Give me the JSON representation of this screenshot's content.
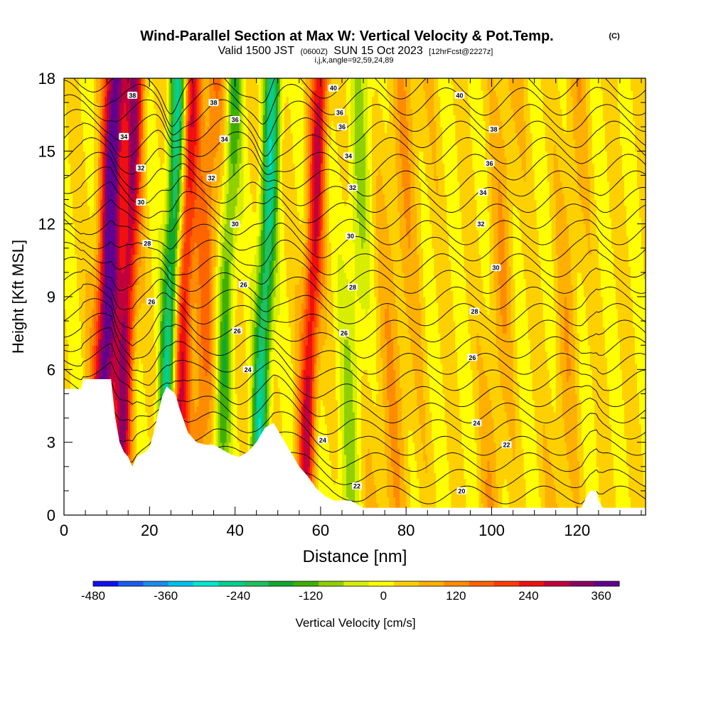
{
  "chart_data": {
    "type": "heatmap",
    "title": "Wind-Parallel Section at Max W: Vertical Velocity & Pot.Temp.",
    "title_mark": "(C)",
    "subtitle": {
      "prefix": "Valid 1500 JST",
      "zulu": "(0600Z)",
      "date": "SUN 15 Oct 2023",
      "forecast": "[12hrFcst@2227z]"
    },
    "subtitle2": "i,j,k,angle=92,59,24,89",
    "xlabel": "Distance [nm]",
    "ylabel": "Height [Kft MSL]",
    "xlim": [
      0,
      136
    ],
    "ylim": [
      0,
      18
    ],
    "xticks": [
      "0",
      "20",
      "40",
      "60",
      "80",
      "100",
      "120"
    ],
    "yticks": [
      "0",
      "3",
      "6",
      "9",
      "12",
      "15",
      "18"
    ],
    "colorbar": {
      "label": "Vertical Velocity [cm/s]",
      "range": [
        -480,
        390
      ],
      "tick_labels": [
        "-480",
        "-360",
        "-240",
        "-120",
        "0",
        "120",
        "240",
        "360"
      ],
      "colors": [
        "#1010f0",
        "#1a5cf0",
        "#1a8cf0",
        "#00c0f0",
        "#00e6d0",
        "#00d090",
        "#20c060",
        "#10a830",
        "#40b000",
        "#90d000",
        "#d8ee00",
        "#ffff00",
        "#ffd000",
        "#ffb000",
        "#ff8c00",
        "#ff6400",
        "#ff3c00",
        "#f01010",
        "#c0003c",
        "#8c0064",
        "#600090"
      ]
    },
    "background_w": 20,
    "w_features": [
      {
        "x": 10,
        "w": 320,
        "width": 2.5
      },
      {
        "x": 12,
        "w": 80,
        "width": 3
      },
      {
        "x": 15,
        "w": 250,
        "width": 2
      },
      {
        "x": 25,
        "w": -260,
        "width": 2
      },
      {
        "x": 28,
        "w": 230,
        "width": 2
      },
      {
        "x": 33,
        "w": 120,
        "width": 3
      },
      {
        "x": 38,
        "w": -150,
        "width": 2
      },
      {
        "x": 47,
        "w": -260,
        "width": 2
      },
      {
        "x": 58,
        "w": 250,
        "width": 2
      },
      {
        "x": 68,
        "w": -80,
        "width": 3
      },
      {
        "x": 78,
        "w": 60,
        "width": 5
      },
      {
        "x": 102,
        "w": 60,
        "width": 3
      },
      {
        "x": 118,
        "w": 50,
        "width": 3
      }
    ],
    "terrain": [
      {
        "x": 0,
        "y": 5.2
      },
      {
        "x": 4,
        "y": 5.2
      },
      {
        "x": 4.5,
        "y": 5.6
      },
      {
        "x": 11,
        "y": 5.6
      },
      {
        "x": 12,
        "y": 4.0
      },
      {
        "x": 13,
        "y": 3.0
      },
      {
        "x": 14,
        "y": 2.6
      },
      {
        "x": 15,
        "y": 2.4
      },
      {
        "x": 16,
        "y": 2.0
      },
      {
        "x": 17,
        "y": 2.4
      },
      {
        "x": 19,
        "y": 2.6
      },
      {
        "x": 20,
        "y": 2.8
      },
      {
        "x": 21,
        "y": 3.4
      },
      {
        "x": 22,
        "y": 4.2
      },
      {
        "x": 23,
        "y": 4.9
      },
      {
        "x": 24,
        "y": 5.3
      },
      {
        "x": 26,
        "y": 5.0
      },
      {
        "x": 27,
        "y": 4.4
      },
      {
        "x": 29,
        "y": 3.4
      },
      {
        "x": 31,
        "y": 3.0
      },
      {
        "x": 33,
        "y": 2.9
      },
      {
        "x": 35,
        "y": 2.9
      },
      {
        "x": 37,
        "y": 2.7
      },
      {
        "x": 39,
        "y": 2.5
      },
      {
        "x": 41,
        "y": 2.4
      },
      {
        "x": 43,
        "y": 2.6
      },
      {
        "x": 45,
        "y": 3.0
      },
      {
        "x": 47,
        "y": 3.6
      },
      {
        "x": 49,
        "y": 3.8
      },
      {
        "x": 51,
        "y": 3.2
      },
      {
        "x": 53,
        "y": 2.6
      },
      {
        "x": 55,
        "y": 2.0
      },
      {
        "x": 57,
        "y": 1.6
      },
      {
        "x": 59,
        "y": 1.1
      },
      {
        "x": 61,
        "y": 0.8
      },
      {
        "x": 63,
        "y": 0.6
      },
      {
        "x": 67,
        "y": 0.6
      },
      {
        "x": 70,
        "y": 0.3
      },
      {
        "x": 121,
        "y": 0.3
      },
      {
        "x": 122,
        "y": 0.7
      },
      {
        "x": 123,
        "y": 1.0
      },
      {
        "x": 124.5,
        "y": 1.0
      },
      {
        "x": 125,
        "y": 0.6
      },
      {
        "x": 126,
        "y": 0.3
      },
      {
        "x": 136,
        "y": 0.3
      }
    ],
    "contour_labels": [
      {
        "text": "38",
        "x": 16,
        "y": 17.3
      },
      {
        "text": "34",
        "x": 14,
        "y": 15.6
      },
      {
        "text": "32",
        "x": 18,
        "y": 14.3
      },
      {
        "text": "30",
        "x": 18,
        "y": 12.9
      },
      {
        "text": "28",
        "x": 19.5,
        "y": 11.2
      },
      {
        "text": "26",
        "x": 20.5,
        "y": 8.8
      },
      {
        "text": "38",
        "x": 35,
        "y": 17.0
      },
      {
        "text": "36",
        "x": 40,
        "y": 16.3
      },
      {
        "text": "34",
        "x": 37.5,
        "y": 15.5
      },
      {
        "text": "32",
        "x": 34.5,
        "y": 13.9
      },
      {
        "text": "30",
        "x": 40,
        "y": 12.0
      },
      {
        "text": "26",
        "x": 42,
        "y": 9.5
      },
      {
        "text": "26",
        "x": 40.5,
        "y": 7.6
      },
      {
        "text": "24",
        "x": 43,
        "y": 6.0
      },
      {
        "text": "40",
        "x": 63,
        "y": 17.6
      },
      {
        "text": "36",
        "x": 64.5,
        "y": 16.6
      },
      {
        "text": "36",
        "x": 65,
        "y": 16.0
      },
      {
        "text": "34",
        "x": 66.5,
        "y": 14.8
      },
      {
        "text": "32",
        "x": 67.5,
        "y": 13.5
      },
      {
        "text": "30",
        "x": 67,
        "y": 11.5
      },
      {
        "text": "28",
        "x": 67.5,
        "y": 9.4
      },
      {
        "text": "26",
        "x": 65.5,
        "y": 7.5
      },
      {
        "text": "24",
        "x": 60.5,
        "y": 3.1
      },
      {
        "text": "22",
        "x": 68.5,
        "y": 1.2
      },
      {
        "text": "40",
        "x": 92.5,
        "y": 17.3
      },
      {
        "text": "38",
        "x": 100.5,
        "y": 15.9
      },
      {
        "text": "36",
        "x": 99.5,
        "y": 14.5
      },
      {
        "text": "34",
        "x": 98,
        "y": 13.3
      },
      {
        "text": "32",
        "x": 97.5,
        "y": 12.0
      },
      {
        "text": "30",
        "x": 101,
        "y": 10.2
      },
      {
        "text": "28",
        "x": 96,
        "y": 8.4
      },
      {
        "text": "26",
        "x": 95.5,
        "y": 6.5
      },
      {
        "text": "24",
        "x": 96.5,
        "y": 3.8
      },
      {
        "text": "22",
        "x": 103.5,
        "y": 2.9
      },
      {
        "text": "20",
        "x": 93,
        "y": 1.0
      }
    ]
  }
}
